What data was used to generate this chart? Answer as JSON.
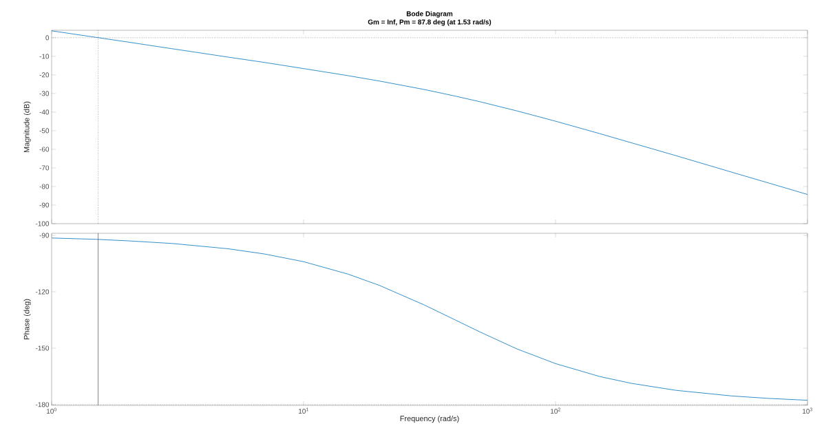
{
  "chart_data": [
    {
      "type": "line",
      "title": "Bode Diagram",
      "subtitle": "Gm = Inf,  Pm = 87.8 deg (at 1.53 rad/s)",
      "ylabel": "Magnitude (dB)",
      "x": [
        1,
        1.5,
        2,
        3,
        5,
        7,
        10,
        15,
        20,
        30,
        40,
        50,
        70,
        100,
        150,
        200,
        300,
        500,
        700,
        1000
      ],
      "series": [
        {
          "color": "#0072bd",
          "values": [
            3.7,
            0.2,
            -2.3,
            -5.9,
            -10.4,
            -13.3,
            -16.6,
            -20.4,
            -23.3,
            -27.8,
            -31.4,
            -34.4,
            -39.3,
            -44.9,
            -51.6,
            -56.5,
            -63.4,
            -72.3,
            -78.1,
            -84.3
          ]
        }
      ],
      "log": "x",
      "xlim": [
        1,
        1000
      ],
      "ylim": [
        -100,
        4
      ],
      "xticks": [
        {
          "value": 1,
          "label": null
        },
        {
          "value": 10,
          "label": null
        },
        {
          "value": 100,
          "label": null
        },
        {
          "value": 1000,
          "label": null
        }
      ],
      "yticks": [
        -100,
        -90,
        -80,
        -70,
        -60,
        -50,
        -40,
        -30,
        -20,
        -10,
        0
      ],
      "tick_labels": "y",
      "ref_lines": [
        {
          "axis": "y",
          "value": 0,
          "color": "#262626",
          "line_style": "dotted"
        },
        {
          "axis": "x",
          "value": 1.53,
          "color": "#262626",
          "line_style": "dotted"
        }
      ]
    },
    {
      "type": "line",
      "xlabel": "Frequency  (rad/s)",
      "ylabel": "Phase (deg)",
      "x": [
        1,
        1.5,
        2,
        3,
        5,
        7,
        10,
        15,
        20,
        30,
        40,
        50,
        70,
        100,
        150,
        200,
        300,
        500,
        700,
        1000
      ],
      "series": [
        {
          "color": "#0072bd",
          "values": [
            -91.4,
            -92.1,
            -92.9,
            -94.3,
            -97.1,
            -99.9,
            -104.0,
            -110.6,
            -116.6,
            -126.9,
            -135.0,
            -141.3,
            -150.3,
            -158.2,
            -165.1,
            -168.7,
            -172.4,
            -175.4,
            -176.7,
            -177.7
          ]
        }
      ],
      "log": "x",
      "xlim": [
        1,
        1000
      ],
      "ylim": [
        -180.4,
        -88.9
      ],
      "xticks": [
        {
          "value": 1,
          "label": "10$^{0}$"
        },
        {
          "value": 10,
          "label": "10$^{1}$"
        },
        {
          "value": 100,
          "label": "10$^{2}$"
        },
        {
          "value": 1000,
          "label": "10$^{3}$"
        }
      ],
      "yticks": [
        -180,
        -150,
        -120,
        -90
      ],
      "ref_lines": [
        {
          "axis": "y",
          "value": -180,
          "color": "#262626",
          "line_style": "dotted"
        },
        {
          "axis": "x",
          "value": 1.53,
          "color": "#262626",
          "line_style": "solid"
        }
      ]
    }
  ]
}
